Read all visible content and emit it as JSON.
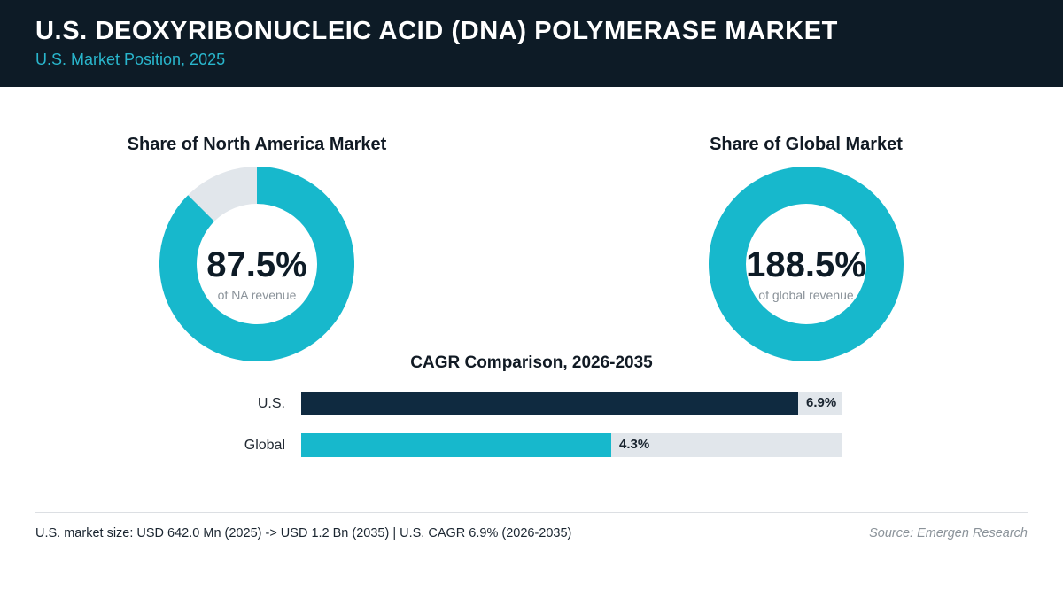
{
  "header": {
    "title": "U.S. DEOXYRIBONUCLEIC ACID (DNA) POLYMERASE MARKET",
    "subtitle": "U.S. Market Position, 2025"
  },
  "colors": {
    "accent": "#17b8cc",
    "dark": "#0f2a40",
    "track": "#e1e6eb"
  },
  "chart_data": [
    {
      "type": "pie",
      "title": "Share of North America Market",
      "value": 87.5,
      "value_label": "87.5%",
      "caption": "of NA revenue"
    },
    {
      "type": "pie",
      "title": "Share of Global Market",
      "value": 188.5,
      "value_label": "188.5%",
      "caption": "of global revenue"
    },
    {
      "type": "bar",
      "title": "CAGR Comparison, 2026-2035",
      "categories": [
        "U.S.",
        "Global"
      ],
      "values": [
        6.9,
        4.3
      ],
      "value_labels": [
        "6.9%",
        "4.3%"
      ],
      "xlim": [
        0,
        7.5
      ]
    }
  ],
  "footer": {
    "note": "U.S. market size: USD 642.0 Mn (2025) -> USD 1.2 Bn (2035)  |  U.S. CAGR 6.9% (2026-2035)",
    "source": "Source: Emergen Research"
  }
}
